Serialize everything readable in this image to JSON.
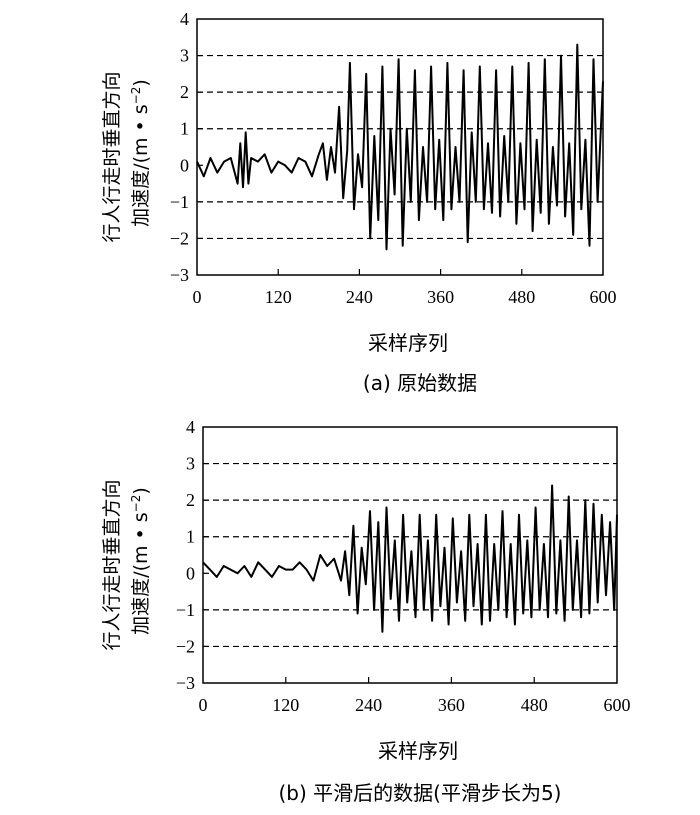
{
  "chart_data": [
    {
      "type": "line",
      "title": "",
      "caption": "(a) 原始数据",
      "xlabel": "采样序列",
      "ylabel_line1": "行人行走时垂直方向",
      "ylabel_line2": "加速度/(m • s",
      "ylabel_sup": "−2",
      "ylabel_close": ")",
      "xlim": [
        0,
        600
      ],
      "ylim": [
        -3,
        4
      ],
      "xticks": [
        "0",
        "120",
        "240",
        "360",
        "480",
        "600"
      ],
      "yticks": [
        "4",
        "3",
        "2",
        "1",
        "0",
        "−1",
        "−2",
        "−3"
      ],
      "gridlines_y": [
        3,
        2,
        1,
        -1,
        -2
      ],
      "series": [
        {
          "x": [
            0,
            10,
            20,
            30,
            40,
            50,
            60,
            64,
            68,
            72,
            76,
            80,
            90,
            100,
            110,
            120,
            130,
            140,
            150,
            160,
            170,
            180,
            186,
            192,
            198,
            204,
            210,
            216,
            222,
            226,
            232,
            238,
            244,
            250,
            256,
            262,
            268,
            274,
            280,
            286,
            292,
            298,
            304,
            310,
            316,
            322,
            328,
            334,
            340,
            346,
            352,
            358,
            364,
            370,
            376,
            382,
            388,
            394,
            400,
            406,
            412,
            418,
            424,
            430,
            436,
            442,
            448,
            454,
            460,
            466,
            472,
            478,
            484,
            490,
            496,
            502,
            508,
            514,
            520,
            526,
            532,
            538,
            544,
            550,
            556,
            562,
            568,
            574,
            580,
            586,
            592,
            600
          ],
          "y": [
            0.1,
            -0.3,
            0.2,
            -0.2,
            0.1,
            0.2,
            -0.5,
            0.6,
            -0.6,
            0.9,
            -0.5,
            0.2,
            0.1,
            0.3,
            -0.2,
            0.1,
            0.0,
            -0.2,
            0.2,
            0.1,
            -0.3,
            0.3,
            0.6,
            -0.4,
            0.5,
            -0.2,
            1.6,
            -0.9,
            0.4,
            2.8,
            -1.2,
            0.3,
            -0.6,
            2.5,
            -2.0,
            0.8,
            -1.5,
            2.7,
            -2.3,
            1.0,
            -0.8,
            2.9,
            -2.2,
            1.0,
            -1.0,
            2.6,
            -1.5,
            0.5,
            -1.0,
            2.7,
            -1.2,
            0.7,
            -1.5,
            2.8,
            -1.2,
            0.5,
            -1.0,
            2.6,
            -2.1,
            0.9,
            -1.0,
            2.7,
            -1.2,
            0.6,
            -1.3,
            2.6,
            -1.4,
            0.8,
            -1.0,
            2.7,
            -1.6,
            0.6,
            -1.2,
            2.8,
            -1.8,
            0.7,
            -1.3,
            2.9,
            -1.6,
            0.5,
            -1.1,
            3.0,
            -1.4,
            0.6,
            -1.9,
            3.3,
            -1.2,
            0.7,
            -2.2,
            2.9,
            -1.0,
            2.3
          ]
        }
      ]
    },
    {
      "type": "line",
      "title": "",
      "caption": "(b) 平滑后的数据(平滑步长为5)",
      "xlabel": "采样序列",
      "ylabel_line1": "行人行走时垂直方向",
      "ylabel_line2": "加速度/(m • s",
      "ylabel_sup": "−2",
      "ylabel_close": ")",
      "xlim": [
        0,
        600
      ],
      "ylim": [
        -3,
        4
      ],
      "xticks": [
        "0",
        "120",
        "240",
        "360",
        "480",
        "600"
      ],
      "yticks": [
        "4",
        "3",
        "2",
        "1",
        "0",
        "−1",
        "−2",
        "−3"
      ],
      "gridlines_y": [
        3,
        2,
        1,
        -1,
        -2
      ],
      "series": [
        {
          "x": [
            0,
            10,
            20,
            30,
            40,
            50,
            60,
            70,
            80,
            90,
            100,
            110,
            120,
            130,
            140,
            150,
            160,
            170,
            180,
            190,
            200,
            206,
            212,
            218,
            224,
            230,
            236,
            242,
            248,
            254,
            260,
            266,
            272,
            278,
            284,
            290,
            296,
            302,
            308,
            314,
            320,
            326,
            332,
            338,
            344,
            350,
            356,
            362,
            368,
            374,
            380,
            386,
            392,
            398,
            404,
            410,
            416,
            422,
            428,
            434,
            440,
            446,
            452,
            458,
            464,
            470,
            476,
            482,
            488,
            494,
            500,
            506,
            512,
            518,
            524,
            530,
            536,
            542,
            548,
            554,
            560,
            566,
            572,
            578,
            584,
            590,
            596,
            600
          ],
          "y": [
            0.3,
            0.1,
            -0.1,
            0.2,
            0.1,
            0.0,
            0.2,
            -0.1,
            0.3,
            0.1,
            -0.1,
            0.2,
            0.1,
            0.1,
            0.3,
            0.1,
            -0.2,
            0.5,
            0.2,
            0.4,
            -0.2,
            0.6,
            -0.6,
            1.3,
            -1.1,
            0.7,
            -0.3,
            1.7,
            -1.0,
            1.4,
            -1.6,
            1.8,
            -0.7,
            0.9,
            -1.3,
            1.6,
            -0.8,
            0.6,
            -1.2,
            1.6,
            -1.0,
            0.9,
            -1.3,
            1.6,
            -0.9,
            0.7,
            -1.4,
            1.5,
            -0.8,
            0.6,
            -1.3,
            1.6,
            -0.9,
            0.8,
            -1.4,
            1.6,
            -1.3,
            0.8,
            -1.0,
            1.7,
            -1.2,
            0.8,
            -1.4,
            1.6,
            -1.1,
            0.9,
            -1.2,
            1.8,
            -1.0,
            0.8,
            -1.2,
            2.4,
            -1.1,
            0.9,
            -1.3,
            2.1,
            -1.0,
            0.9,
            -1.2,
            2.0,
            -1.1,
            1.9,
            -0.8,
            1.6,
            -0.6,
            1.4,
            -1.0,
            1.6
          ]
        }
      ]
    }
  ]
}
